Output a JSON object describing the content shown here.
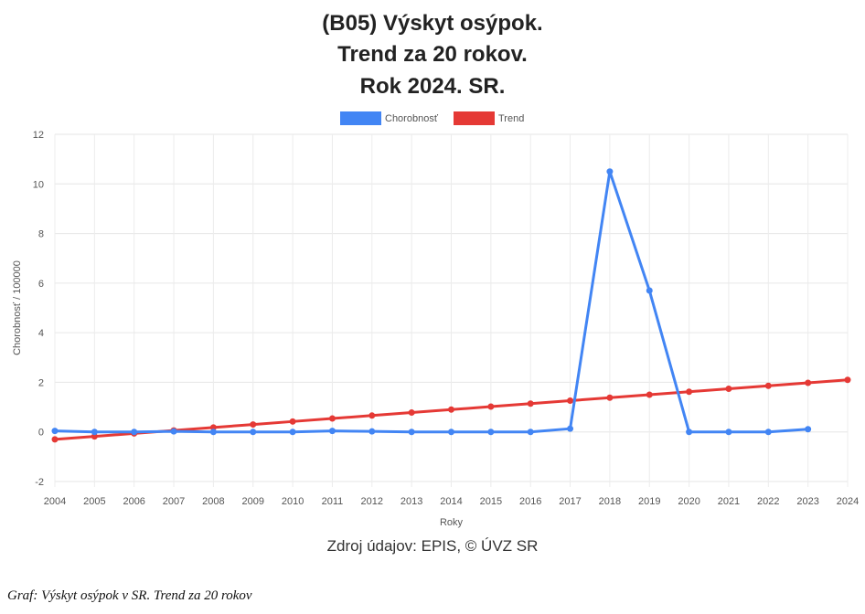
{
  "chart_data": {
    "type": "line",
    "title_lines": [
      "(B05) Výskyt osýpok.",
      "Trend za 20 rokov.",
      "Rok 2024. SR."
    ],
    "xlabel": "Roky",
    "ylabel": "Chorobnosť / 100000",
    "categories": [
      "2004",
      "2005",
      "2006",
      "2007",
      "2008",
      "2009",
      "2010",
      "2011",
      "2012",
      "2013",
      "2014",
      "2015",
      "2016",
      "2017",
      "2018",
      "2019",
      "2020",
      "2021",
      "2022",
      "2023",
      "2024"
    ],
    "ylim": [
      -2,
      12
    ],
    "yticks": [
      "-2",
      "0",
      "2",
      "4",
      "6",
      "8",
      "10",
      "12"
    ],
    "grid": true,
    "legend_position": "top",
    "series": [
      {
        "name": "Chorobnosť",
        "color": "#4285f4",
        "values": [
          0.04,
          0.0,
          0.0,
          0.02,
          0.0,
          0.0,
          0.0,
          0.04,
          0.02,
          0.0,
          0.0,
          0.0,
          0.0,
          0.13,
          10.5,
          5.7,
          0.0,
          0.0,
          0.0,
          0.11,
          null
        ]
      },
      {
        "name": "Trend",
        "color": "#e53935",
        "values": [
          -0.3,
          -0.18,
          -0.06,
          0.06,
          0.18,
          0.3,
          0.42,
          0.54,
          0.66,
          0.78,
          0.9,
          1.02,
          1.14,
          1.26,
          1.38,
          1.5,
          1.62,
          1.74,
          1.86,
          1.98,
          2.1
        ]
      }
    ]
  },
  "source_text": "Zdroj údajov: EPIS, © ÚVZ SR",
  "caption": "Graf: Výskyt osýpok v SR. Trend za 20 rokov"
}
